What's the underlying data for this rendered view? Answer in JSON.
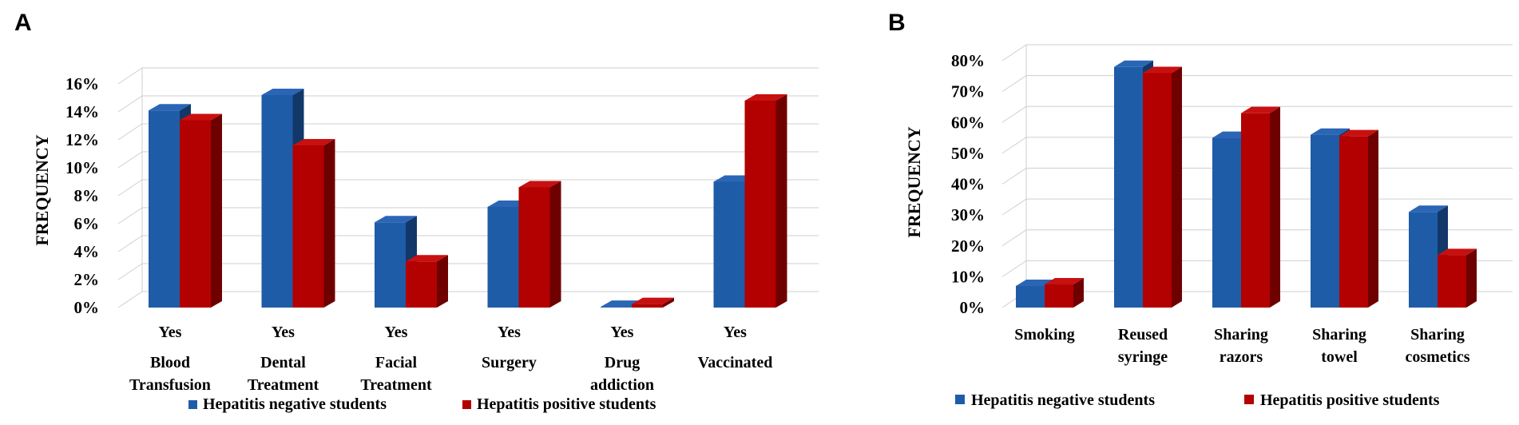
{
  "colors": {
    "negative_front": "#1f5ca8",
    "negative_side": "#12386a",
    "negative_top": "#2a66b5",
    "positive_front": "#b30000",
    "positive_side": "#6e0000",
    "positive_top": "#c81010"
  },
  "chart_data": [
    {
      "panel": "A",
      "type": "bar",
      "ylabel": "FREQUENCY",
      "ytick_labels": [
        "0%",
        "2%",
        "4%",
        "6%",
        "8%",
        "10%",
        "12%",
        "14%",
        "16%"
      ],
      "ylim": [
        0,
        16
      ],
      "sublabels": [
        "Yes",
        "Yes",
        "Yes",
        "Yes",
        "Yes",
        "Yes"
      ],
      "categories": [
        [
          "Blood",
          "Transfusion"
        ],
        [
          "Dental",
          "Treatment"
        ],
        [
          "Facial",
          "Treatment"
        ],
        [
          "Surgery"
        ],
        [
          "Drug",
          "addiction"
        ],
        [
          "Vaccinated"
        ]
      ],
      "series": [
        {
          "name": "Hepatitis negative students",
          "values": [
            14.1,
            15.2,
            6.1,
            7.2,
            0.05,
            9.0
          ]
        },
        {
          "name": "Hepatitis positive students",
          "values": [
            13.4,
            11.6,
            3.3,
            8.6,
            0.25,
            14.8
          ]
        }
      ],
      "legend": "bottom"
    },
    {
      "panel": "B",
      "type": "bar",
      "ylabel": "FREQUENCY",
      "ytick_labels": [
        "0%",
        "10%",
        "20%",
        "30%",
        "40%",
        "50%",
        "60%",
        "70%",
        "80%"
      ],
      "ylim": [
        0,
        80
      ],
      "categories": [
        [
          "Smoking"
        ],
        [
          "Reused",
          "syringe"
        ],
        [
          "Sharing",
          "razors"
        ],
        [
          "Sharing",
          "towel"
        ],
        [
          "Sharing",
          "cosmetics"
        ]
      ],
      "series": [
        {
          "name": "Hepatitis negative students",
          "values": [
            7,
            78,
            55,
            56,
            31
          ]
        },
        {
          "name": "Hepatitis positive students",
          "values": [
            7.5,
            76,
            63,
            55.5,
            17
          ]
        }
      ],
      "legend": "bottom"
    }
  ]
}
